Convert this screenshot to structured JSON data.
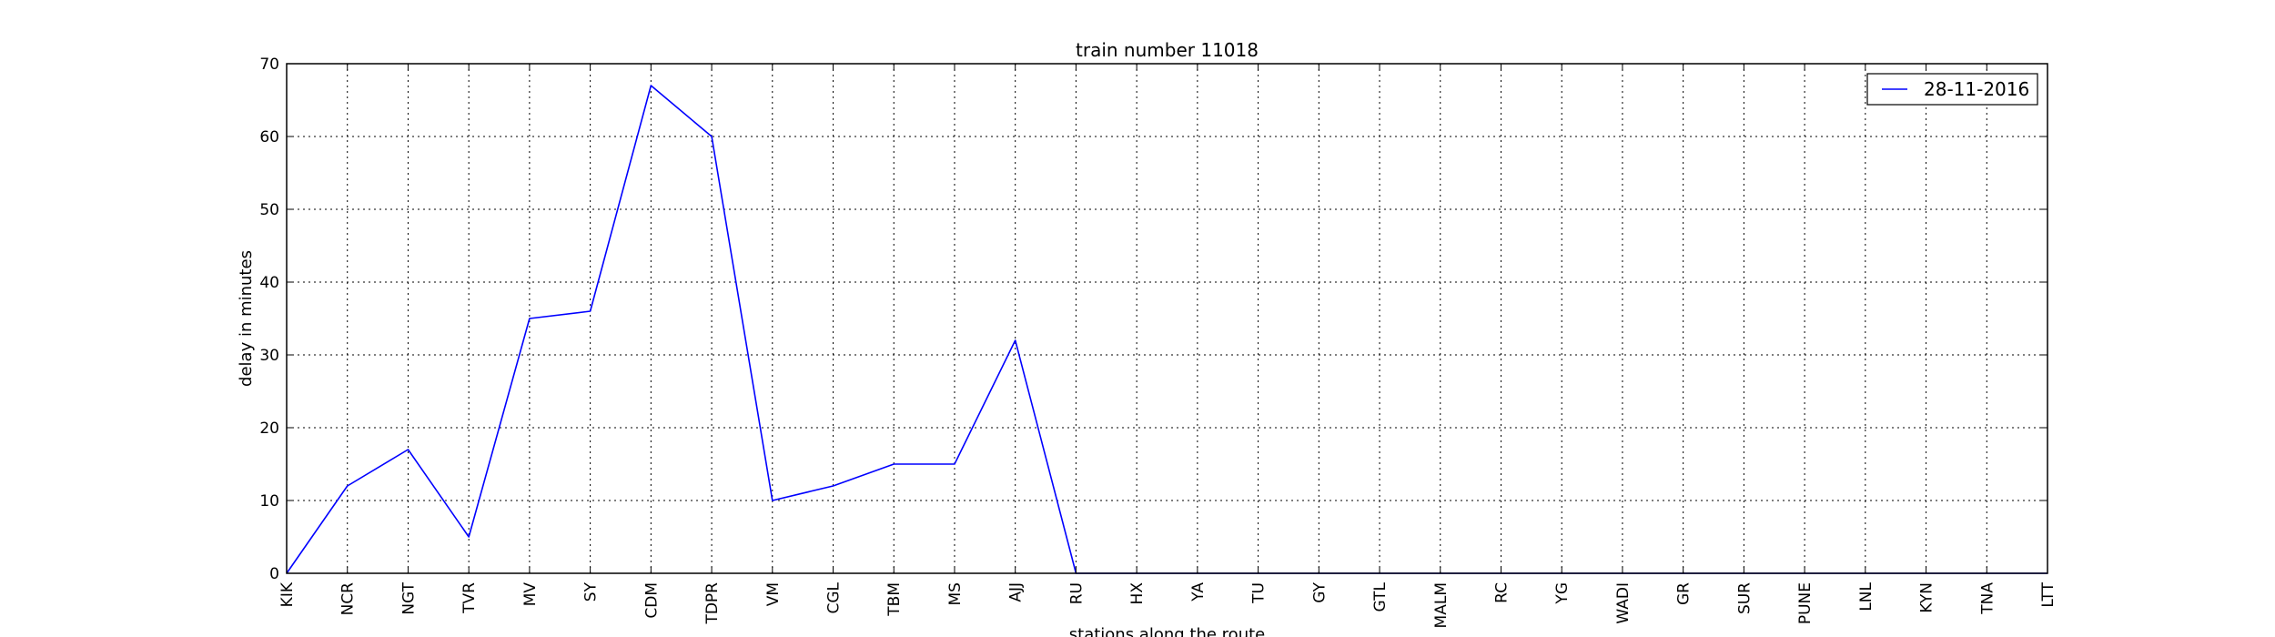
{
  "chart_data": {
    "type": "line",
    "title": "train number 11018",
    "xlabel": "stations along the route",
    "ylabel": "delay in minutes",
    "categories": [
      "KIK",
      "NCR",
      "NGT",
      "TVR",
      "MV",
      "SY",
      "CDM",
      "TDPR",
      "VM",
      "CGL",
      "TBM",
      "MS",
      "AJJ",
      "RU",
      "HX",
      "YA",
      "TU",
      "GY",
      "GTL",
      "MALM",
      "RC",
      "YG",
      "WADI",
      "GR",
      "SUR",
      "PUNE",
      "LNL",
      "KYN",
      "TNA",
      "LTT"
    ],
    "ylim": [
      0,
      70
    ],
    "yticks": [
      "0",
      "10",
      "20",
      "30",
      "40",
      "50",
      "60",
      "70"
    ],
    "grid": true,
    "legend_position": "top-right",
    "series": [
      {
        "name": "28-11-2016",
        "color": "#0000ff",
        "values": [
          0,
          12,
          17,
          5,
          35,
          36,
          67,
          60,
          10,
          12,
          15,
          15,
          32,
          0,
          0,
          0,
          0,
          0,
          0,
          0,
          0,
          0,
          0,
          0,
          0,
          0,
          0,
          0,
          0,
          0
        ]
      }
    ]
  }
}
